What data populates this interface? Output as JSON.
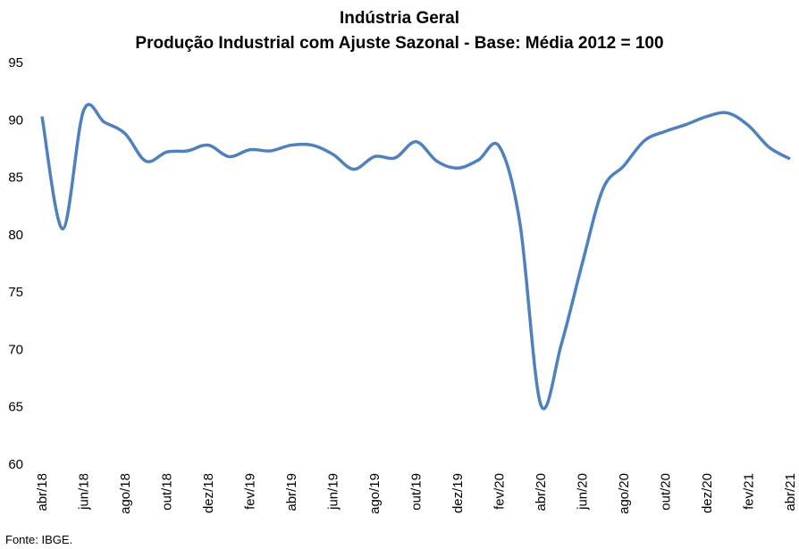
{
  "chart_data": {
    "type": "line",
    "title": "Indústria Geral",
    "subtitle": "Produção Industrial com Ajuste Sazonal - Base: Média 2012 = 100",
    "source": "Fonte: IBGE.",
    "categories": [
      "abr/18",
      null,
      "jun/18",
      null,
      "ago/18",
      null,
      "out/18",
      null,
      "dez/18",
      null,
      "fev/19",
      null,
      "abr/19",
      null,
      "jun/19",
      null,
      "ago/19",
      null,
      "out/19",
      null,
      "dez/19",
      null,
      "fev/20",
      null,
      "abr/20",
      null,
      "jun/20",
      null,
      "ago/20",
      null,
      "out/20",
      null,
      "dez/20",
      null,
      "fev/21",
      null,
      "abr/21"
    ],
    "series": [
      {
        "name": "Produção Industrial",
        "color": "#4f81bd",
        "values": [
          90.3,
          80.5,
          90.8,
          89.8,
          88.8,
          86.4,
          87.2,
          87.3,
          87.8,
          86.8,
          87.4,
          87.3,
          87.8,
          87.8,
          87.0,
          85.7,
          86.8,
          86.7,
          88.1,
          86.4,
          85.8,
          86.5,
          87.7,
          81.0,
          65.2,
          70.5,
          77.5,
          84.0,
          86.0,
          88.2,
          89.0,
          89.6,
          90.3,
          90.6,
          89.5,
          87.6,
          86.6
        ]
      }
    ],
    "ylim": [
      60,
      95
    ],
    "yticks": [
      60,
      65,
      70,
      75,
      80,
      85,
      90,
      95
    ],
    "grid": false
  }
}
